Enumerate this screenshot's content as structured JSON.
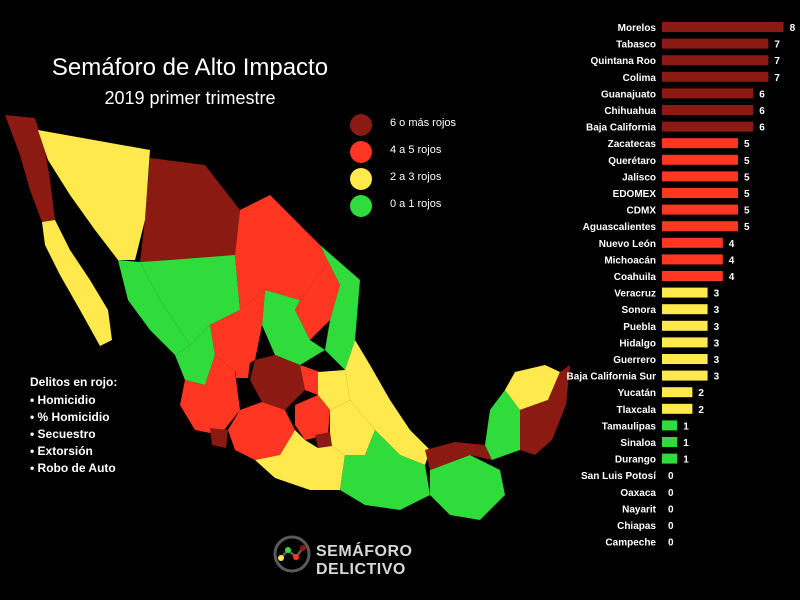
{
  "header": {
    "title": "Semáforo de Alto Impacto",
    "subtitle": "2019 primer trimestre"
  },
  "legend": [
    {
      "label": "6 o más rojos",
      "color": "#8b1a12"
    },
    {
      "label": "4 a 5 rojos",
      "color": "#ff3621"
    },
    {
      "label": "2 a 3  rojos",
      "color": "#ffe94c"
    },
    {
      "label": "0 a 1 rojos",
      "color": "#2fdc3c"
    }
  ],
  "notes": {
    "title": "Delitos en rojo:",
    "items": [
      "Homicidio",
      "% Homicidio",
      "Secuestro",
      "Extorsión",
      "Robo de Auto"
    ]
  },
  "logo": {
    "text": "SEMÁFORO DELICTIVO",
    "icon": "semaforo-logo-icon"
  },
  "map": {
    "icon": "mexico-map-icon"
  },
  "chart_data": {
    "type": "bar",
    "orientation": "horizontal",
    "categories": [
      "Morelos",
      "Tabasco",
      "Quintana Roo",
      "Colima",
      "Guanajuato",
      "Chihuahua",
      "Baja California",
      "Zacatecas",
      "Querétaro",
      "Jalisco",
      "EDOMEX",
      "CDMX",
      "Aguascalientes",
      "Nuevo León",
      "Michoacán",
      "Coahuila",
      "Veracruz",
      "Sonora",
      "Puebla",
      "Hidalgo",
      "Guerrero",
      "Baja California Sur",
      "Yucatán",
      "Tlaxcala",
      "Tamaulipas",
      "Sinaloa",
      "Durango",
      "San Luis Potosí",
      "Oaxaca",
      "Nayarit",
      "Chiapas",
      "Campeche"
    ],
    "values": [
      8,
      7,
      7,
      7,
      6,
      6,
      6,
      5,
      5,
      5,
      5,
      5,
      5,
      4,
      4,
      4,
      3,
      3,
      3,
      3,
      3,
      3,
      2,
      2,
      1,
      1,
      1,
      0,
      0,
      0,
      0,
      0
    ],
    "xlim": [
      0,
      8
    ],
    "colors": {
      "dark_red": "#8b1a12",
      "red": "#ff3621",
      "yellow": "#ffe94c",
      "green": "#2fdc3c"
    }
  }
}
